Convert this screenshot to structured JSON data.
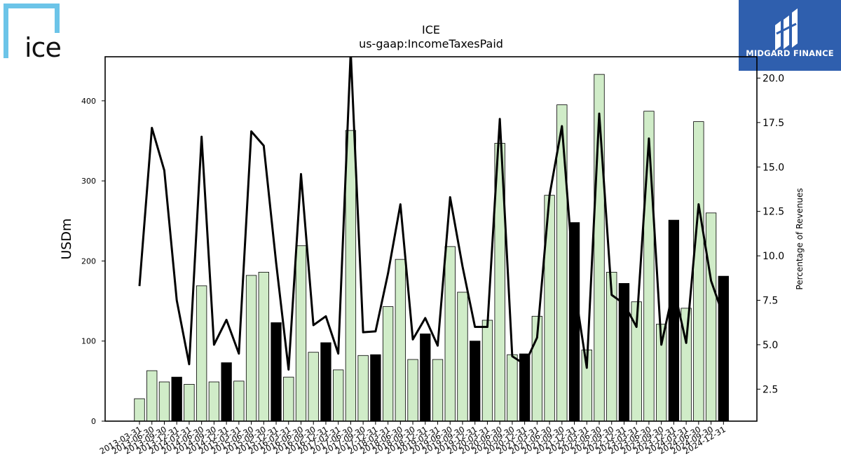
{
  "logos": {
    "left": {
      "text": "ice",
      "color": "#6cc4e8",
      "icon": "ice-logo"
    },
    "right": {
      "text": "MIDGARD FINANCE",
      "background": "#2f5fae",
      "icon": "midgard-finance-logo"
    }
  },
  "chart_data": {
    "type": "bar",
    "title": "ICE",
    "subtitle": "us-gaap:IncomeTaxesPaid",
    "xlabel": "",
    "ylabel": "USDm",
    "y2label": "Percentage of Revenues",
    "ylim": [
      0,
      455
    ],
    "y2lim": [
      0.7,
      21.2
    ],
    "yticks": [
      0,
      100,
      200,
      300,
      400
    ],
    "y2ticks": [
      2.5,
      5.0,
      7.5,
      10.0,
      12.5,
      15.0,
      17.5,
      20.0
    ],
    "grid": false,
    "bar_colors": {
      "quarter": "#d0ecc8",
      "year_end": "#000000"
    },
    "line_color": "#000000",
    "categories": [
      "2013-03-31",
      "2013-06-30",
      "2013-09-30",
      "2013-12-31",
      "2014-03-31",
      "2014-06-30",
      "2014-09-30",
      "2014-12-31",
      "2015-03-31",
      "2015-06-30",
      "2015-09-30",
      "2015-12-31",
      "2016-03-31",
      "2016-06-30",
      "2016-09-30",
      "2016-12-31",
      "2017-03-31",
      "2017-06-30",
      "2017-09-30",
      "2017-12-31",
      "2018-03-31",
      "2018-06-30",
      "2018-09-30",
      "2018-12-31",
      "2019-03-31",
      "2019-06-30",
      "2019-09-30",
      "2019-12-31",
      "2020-03-31",
      "2020-06-30",
      "2020-09-30",
      "2020-12-31",
      "2021-03-31",
      "2021-06-30",
      "2021-09-30",
      "2021-12-31",
      "2022-03-31",
      "2022-06-30",
      "2022-09-30",
      "2022-12-31",
      "2023-03-31",
      "2023-06-30",
      "2023-09-30",
      "2023-12-31",
      "2024-03-31",
      "2024-06-30",
      "2024-09-30",
      "2024-12-31"
    ],
    "series": [
      {
        "kind": "bar",
        "axis": "left",
        "values": [
          28,
          63,
          49,
          55,
          46,
          169,
          49,
          73,
          50,
          182,
          186,
          123,
          55,
          219,
          86,
          98,
          64,
          363,
          82,
          83,
          143,
          202,
          77,
          109,
          77,
          218,
          161,
          100,
          126,
          347,
          83,
          84,
          131,
          282,
          395,
          248,
          89,
          433,
          186,
          172,
          149,
          387,
          121,
          251,
          141,
          374,
          260,
          181
        ]
      },
      {
        "kind": "line",
        "axis": "right",
        "values": [
          8.3,
          17.2,
          14.8,
          7.5,
          3.9,
          16.7,
          5.0,
          6.4,
          4.5,
          17.0,
          16.2,
          9.6,
          3.6,
          14.6,
          6.1,
          6.6,
          4.5,
          21.5,
          5.7,
          5.75,
          9.0,
          12.9,
          5.3,
          6.5,
          4.95,
          13.3,
          9.4,
          6.0,
          6.0,
          17.7,
          4.35,
          3.9,
          5.4,
          13.4,
          17.3,
          8.3,
          3.7,
          18.0,
          7.8,
          7.3,
          6.0,
          16.6,
          5.0,
          8.2,
          5.1,
          12.9,
          8.6,
          6.6
        ]
      }
    ]
  }
}
